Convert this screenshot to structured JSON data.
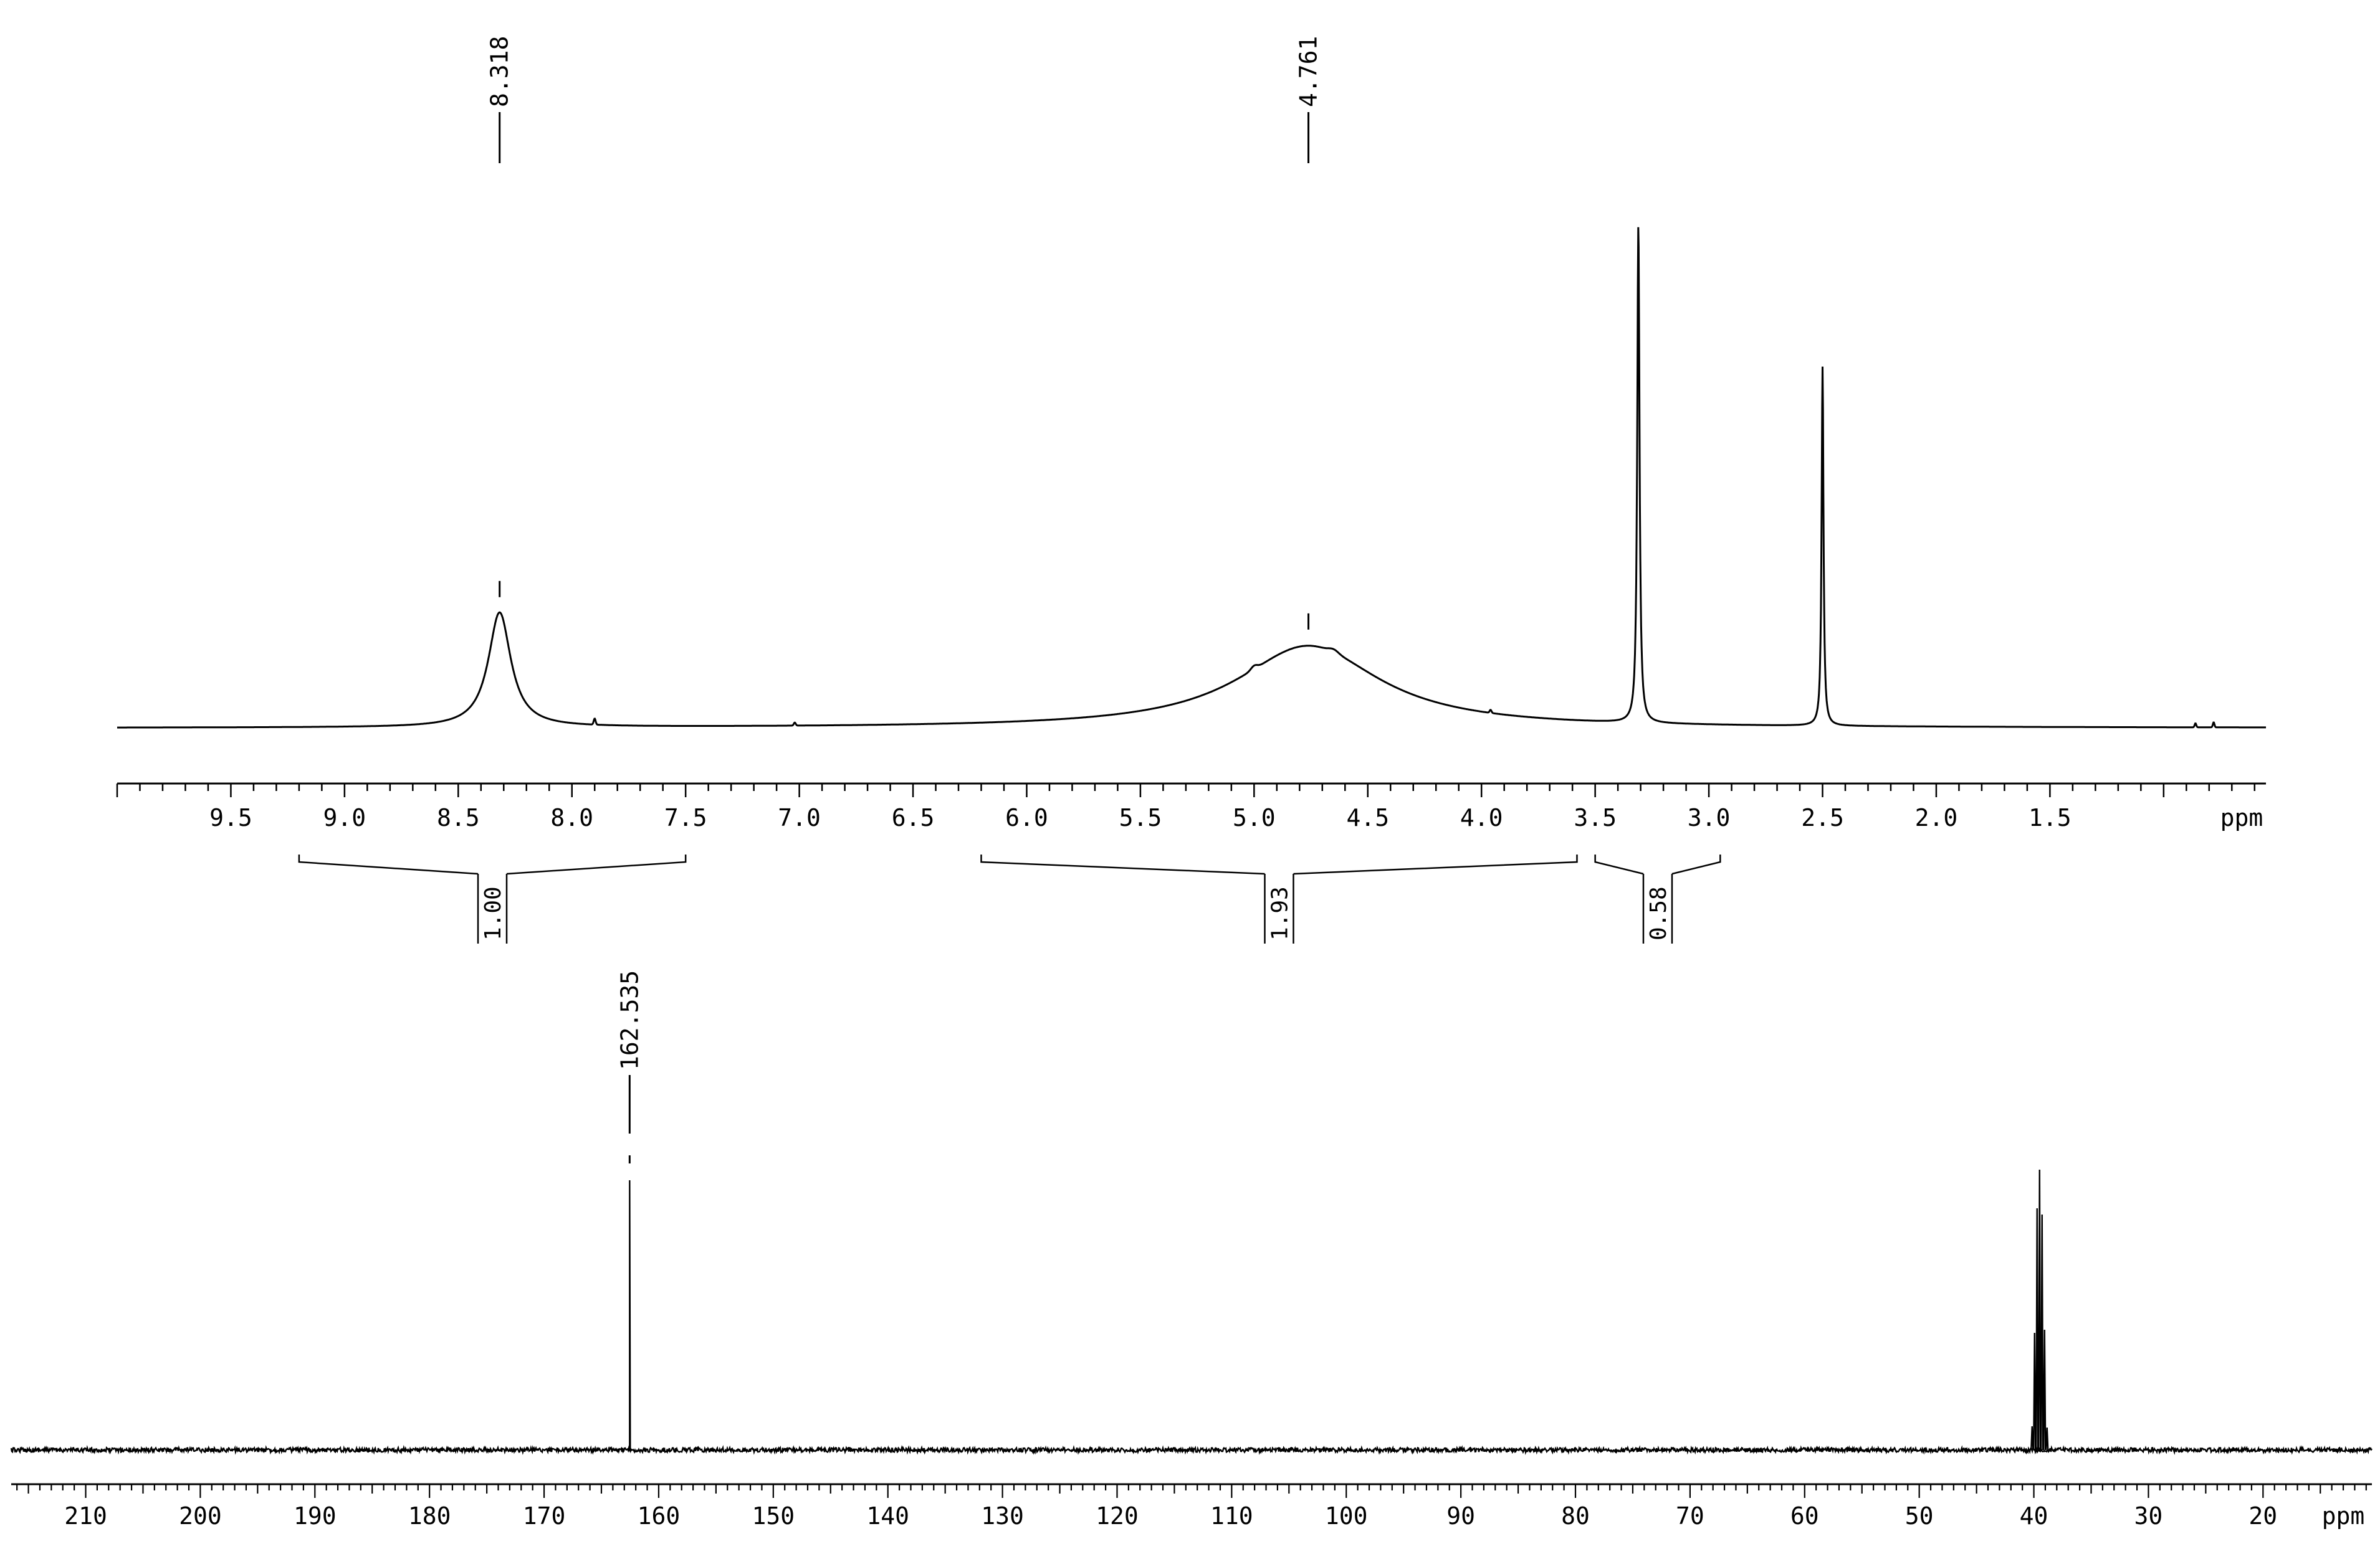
{
  "chart_data": [
    {
      "type": "line",
      "title": "",
      "x_axis": {
        "unit_label": "ppm",
        "range": [
          10.0,
          0.55
        ],
        "reversed": true,
        "major_ticks": [
          9.5,
          9.0,
          8.5,
          8.0,
          7.5,
          7.0,
          6.5,
          6.0,
          5.5,
          5.0,
          4.5,
          4.0,
          3.5,
          3.0,
          2.5,
          2.0,
          1.5
        ],
        "tick_labels": [
          "9.5",
          "9.0",
          "8.5",
          "8.0",
          "7.5",
          "7.0",
          "6.5",
          "6.0",
          "5.5",
          "5.0",
          "4.5",
          "4.0",
          "3.5",
          "3.0",
          "2.5",
          "2.0",
          "1.5"
        ],
        "minor_tick_step": 0.1
      },
      "peaks": [
        {
          "x": 8.318,
          "label": "8.318",
          "height": 0.23,
          "width": 0.06,
          "shape": "lorentzian"
        },
        {
          "x": 4.761,
          "label": "4.761",
          "height": 0.165,
          "width": 0.38,
          "shape": "lorentzian"
        },
        {
          "x": 3.31,
          "label": "",
          "height": 1.0,
          "width": 0.006,
          "shape": "lorentzian"
        },
        {
          "x": 2.5,
          "label": "",
          "height": 0.72,
          "width": 0.005,
          "shape": "lorentzian"
        }
      ],
      "integrals": [
        {
          "from": 9.2,
          "to": 7.5,
          "value": "1.00"
        },
        {
          "from": 6.2,
          "to": 3.58,
          "value": "1.93"
        },
        {
          "from": 3.5,
          "to": 2.95,
          "value": "0.58"
        }
      ]
    },
    {
      "type": "line",
      "title": "",
      "x_axis": {
        "unit_label": "ppm",
        "range": [
          216.5,
          10.5
        ],
        "reversed": true,
        "major_ticks": [
          210,
          200,
          190,
          180,
          170,
          160,
          150,
          140,
          130,
          120,
          110,
          100,
          90,
          80,
          70,
          60,
          50,
          40,
          30,
          20
        ],
        "tick_labels": [
          "210",
          "200",
          "190",
          "180",
          "170",
          "160",
          "150",
          "140",
          "130",
          "120",
          "110",
          "100",
          "90",
          "80",
          "70",
          "60",
          "50",
          "40",
          "30",
          "20"
        ],
        "minor_tick_step": 1
      },
      "peaks": [
        {
          "x": 162.535,
          "label": "162.535",
          "height": 0.96,
          "width": 0.04
        },
        {
          "x": 39.5,
          "label": "",
          "height": 0.95,
          "width": 0.5,
          "shape": "septet"
        }
      ]
    }
  ]
}
